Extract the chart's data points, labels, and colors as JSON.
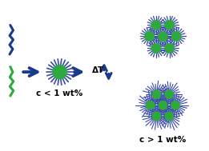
{
  "bg_color": "#ffffff",
  "arrow_color": "#1a3a8a",
  "micelle_core_color": "#2eaa3c",
  "micelle_shell_color": "#3949ab",
  "polymer_blue_color": "#1a3a8a",
  "polymer_green_color": "#2eaa3c",
  "label_low": "c < 1 wt%",
  "label_high": "c > 1 wt%",
  "delta_T": "ΔT",
  "fig_width": 2.61,
  "fig_height": 1.89,
  "dpi": 100,
  "xlim": [
    0,
    10
  ],
  "ylim": [
    0,
    7.26
  ]
}
